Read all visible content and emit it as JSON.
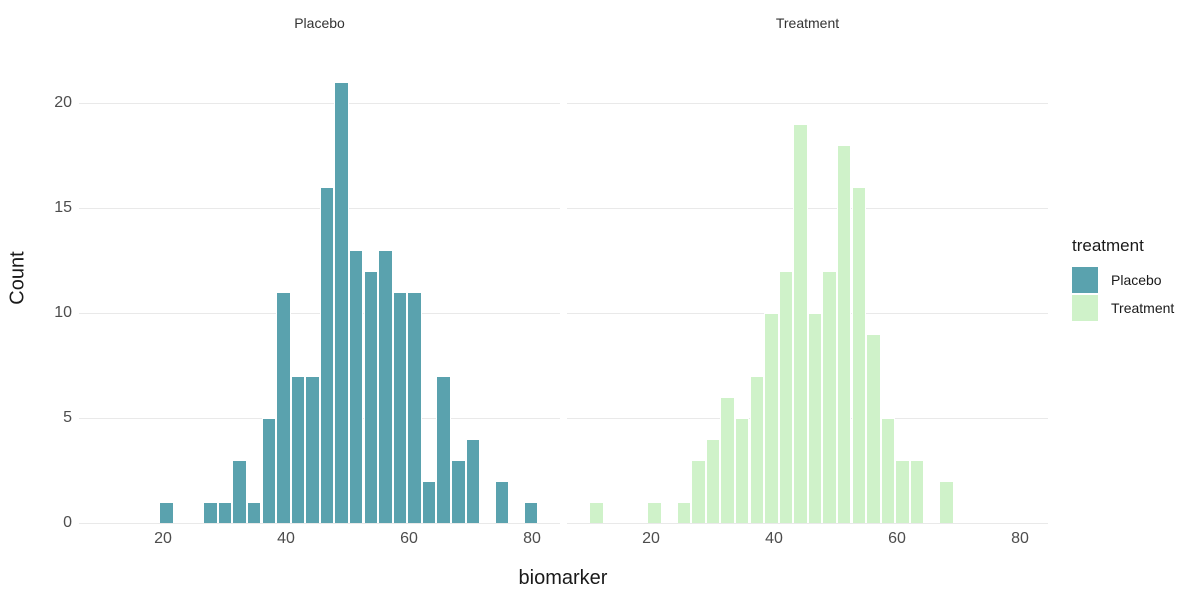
{
  "chart_data": {
    "type": "histogram",
    "title": "",
    "xlabel": "biomarker",
    "ylabel": "Count",
    "x_ticks": [
      20,
      40,
      60,
      80
    ],
    "y_ticks": [
      0,
      5,
      10,
      15,
      20
    ],
    "x_range": [
      6.4,
      84.6
    ],
    "y_range": [
      0,
      22
    ],
    "bin_width": 2.37,
    "grid": "horizontal-major-only",
    "legend_position": "right",
    "facets": [
      {
        "label": "Placebo",
        "color": "#5AA2AE",
        "bins": [
          {
            "start": 19.48,
            "count": 1
          },
          {
            "start": 26.59,
            "count": 1
          },
          {
            "start": 28.96,
            "count": 1
          },
          {
            "start": 31.33,
            "count": 3
          },
          {
            "start": 33.7,
            "count": 1
          },
          {
            "start": 36.07,
            "count": 5
          },
          {
            "start": 38.44,
            "count": 11
          },
          {
            "start": 40.81,
            "count": 7
          },
          {
            "start": 43.18,
            "count": 7
          },
          {
            "start": 45.55,
            "count": 16
          },
          {
            "start": 47.92,
            "count": 21
          },
          {
            "start": 50.29,
            "count": 13
          },
          {
            "start": 52.66,
            "count": 12
          },
          {
            "start": 55.03,
            "count": 13
          },
          {
            "start": 57.4,
            "count": 11
          },
          {
            "start": 59.77,
            "count": 11
          },
          {
            "start": 62.14,
            "count": 2
          },
          {
            "start": 64.51,
            "count": 7
          },
          {
            "start": 66.88,
            "count": 3
          },
          {
            "start": 69.25,
            "count": 4
          },
          {
            "start": 73.99,
            "count": 2
          },
          {
            "start": 78.73,
            "count": 1
          }
        ]
      },
      {
        "label": "Treatment",
        "color": "#CFF2C9",
        "bins": [
          {
            "start": 10.0,
            "count": 1
          },
          {
            "start": 19.48,
            "count": 1
          },
          {
            "start": 24.22,
            "count": 1
          },
          {
            "start": 26.59,
            "count": 3
          },
          {
            "start": 28.96,
            "count": 4
          },
          {
            "start": 31.33,
            "count": 6
          },
          {
            "start": 33.7,
            "count": 5
          },
          {
            "start": 36.07,
            "count": 7
          },
          {
            "start": 38.44,
            "count": 10
          },
          {
            "start": 40.81,
            "count": 12
          },
          {
            "start": 43.18,
            "count": 19
          },
          {
            "start": 45.55,
            "count": 10
          },
          {
            "start": 47.92,
            "count": 12
          },
          {
            "start": 50.29,
            "count": 18
          },
          {
            "start": 52.66,
            "count": 16
          },
          {
            "start": 55.03,
            "count": 9
          },
          {
            "start": 57.4,
            "count": 5
          },
          {
            "start": 59.77,
            "count": 3
          },
          {
            "start": 62.14,
            "count": 3
          },
          {
            "start": 66.88,
            "count": 2
          }
        ]
      }
    ]
  },
  "legend": {
    "title": "treatment",
    "items": [
      {
        "label": "Placebo",
        "color": "#5AA2AE"
      },
      {
        "label": "Treatment",
        "color": "#CFF2C9"
      }
    ]
  },
  "colors": {
    "placebo_fill": "#5AA2AE",
    "treatment_fill": "#CFF2C9",
    "bar_border": "#FFFFFF",
    "gridline": "#E9E9E9",
    "axis_text": "#4D4D4D",
    "title_text": "#1A1A1A",
    "background": "#FFFFFF"
  }
}
